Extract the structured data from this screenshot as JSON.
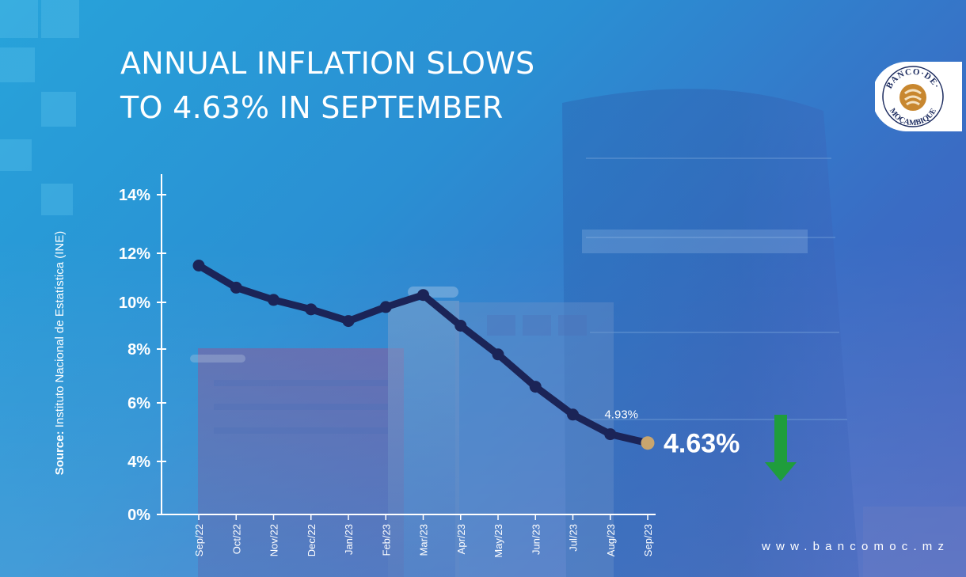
{
  "headline": {
    "line1": "ANNUAL INFLATION SLOWS",
    "line2": "TO 4.63% IN SEPTEMBER"
  },
  "source": {
    "label": "Source:",
    "text": "Instituto Nacional de Estatística (INE)"
  },
  "logo": {
    "text_top": "BANCO·DE·",
    "text_bottom": "MOÇAMBIQUE",
    "colors": {
      "ring": "#ffffff",
      "emblem": "#c8872f",
      "text": "#1b2a5e"
    }
  },
  "website": "www.bancomoc.mz",
  "indicator": {
    "icon": "arrow-down-icon",
    "color": "#1f9d3c"
  },
  "colors": {
    "line": "#1b2457",
    "marker": "#1b2457",
    "highlight_marker": "#c9a56e",
    "axis": "#ffffff"
  },
  "chart_data": {
    "type": "line",
    "title": "ANNUAL INFLATION SLOWS TO 4.63% IN SEPTEMBER",
    "xlabel": "",
    "ylabel": "",
    "categories": [
      "Sep/22",
      "Oct/22",
      "Nov/22",
      "Dec/22",
      "Jan/23",
      "Feb/23",
      "Mar/23",
      "Apr/23",
      "May/23",
      "Jun/23",
      "Jul/23",
      "Aug/23",
      "Sep/23"
    ],
    "values": [
      11.5,
      10.6,
      10.1,
      9.7,
      9.2,
      9.8,
      10.3,
      9.0,
      7.8,
      6.6,
      5.6,
      4.93,
      4.63
    ],
    "y_ticks": [
      "0%",
      "4%",
      "6%",
      "8%",
      "10%",
      "12%",
      "14%"
    ],
    "y_tick_values": [
      0,
      4,
      6,
      8,
      10,
      12,
      14
    ],
    "ylim": [
      0,
      14
    ],
    "grid": false,
    "legend": "none",
    "annotations": [
      {
        "category": "Aug/23",
        "value": 4.93,
        "text": "4.93%"
      },
      {
        "category": "Sep/23",
        "value": 4.63,
        "text": "4.63%"
      }
    ]
  }
}
